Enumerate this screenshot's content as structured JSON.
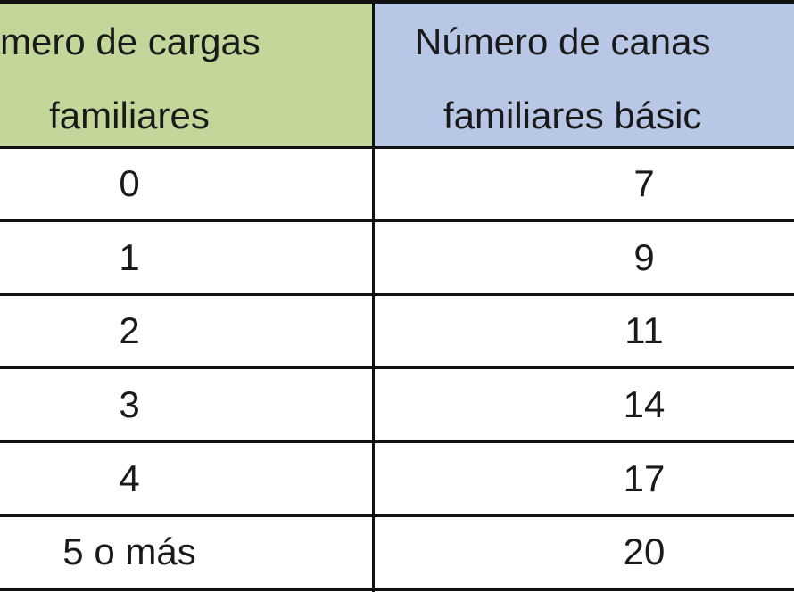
{
  "table": {
    "header": [
      [
        "mero de cargas",
        "familiares"
      ],
      [
        "Número de canas",
        "familiares básic"
      ]
    ],
    "rows": [
      [
        "0",
        "7"
      ],
      [
        "1",
        "9"
      ],
      [
        "2",
        "11"
      ],
      [
        "3",
        "14"
      ],
      [
        "4",
        "17"
      ],
      [
        "5 o más",
        "20"
      ]
    ]
  }
}
